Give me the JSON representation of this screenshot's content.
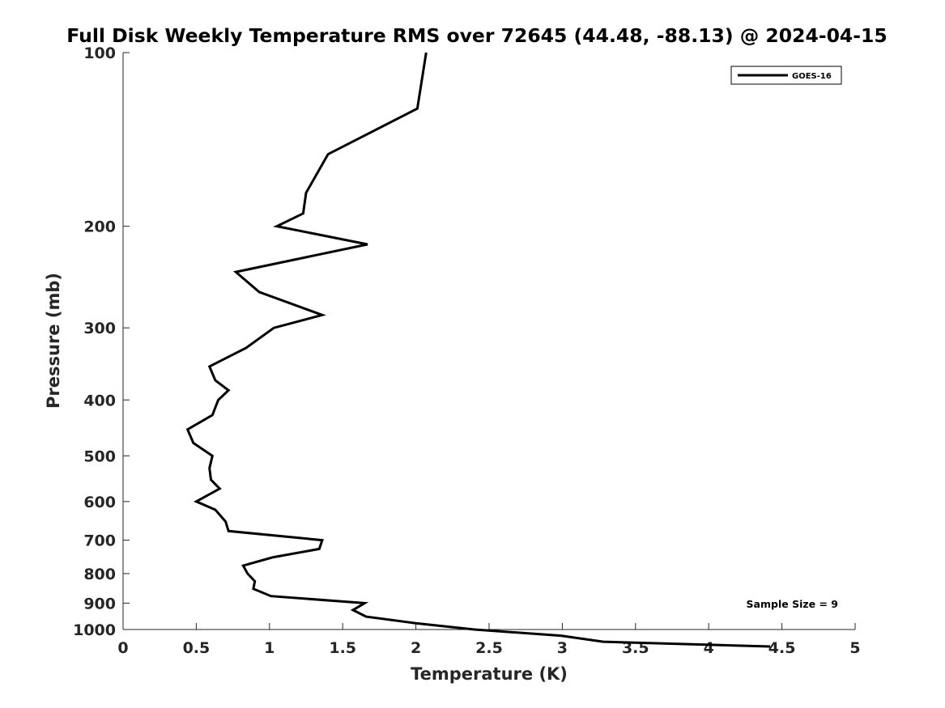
{
  "chart_data": {
    "type": "line",
    "title": "Full Disk Weekly Temperature RMS over 72645 (44.48, -88.13) @ 2024-04-15",
    "xlabel": "Temperature (K)",
    "ylabel": "Pressure (mb)",
    "xlim": [
      0,
      5
    ],
    "ylim": [
      100,
      1000
    ],
    "y_scale": "log",
    "y_reversed": true,
    "x_ticks": [
      "0",
      "0.5",
      "1",
      "1.5",
      "2",
      "2.5",
      "3",
      "3.5",
      "4",
      "4.5",
      "5"
    ],
    "y_ticks": [
      "100",
      "200",
      "300",
      "400",
      "500",
      "600",
      "700",
      "800",
      "900",
      "1000"
    ],
    "grid": false,
    "legend": {
      "placement": "top-right",
      "entries": [
        "GOES-16"
      ]
    },
    "annotation": "Sample Size = 9",
    "line_color": "#000000",
    "series": [
      {
        "name": "GOES-16",
        "x": [
          2.07,
          2.01,
          1.4,
          1.25,
          1.23,
          1.05,
          1.67,
          0.77,
          0.93,
          1.36,
          1.03,
          0.84,
          0.59,
          0.63,
          0.72,
          0.65,
          0.61,
          0.44,
          0.48,
          0.61,
          0.59,
          0.6,
          0.66,
          0.5,
          0.63,
          0.7,
          0.72,
          1.36,
          1.34,
          1.02,
          0.82,
          0.85,
          0.9,
          0.89,
          1.01,
          1.65,
          1.57,
          1.66,
          2.0,
          2.4,
          2.99,
          3.28,
          4.42
        ],
        "y": [
          100,
          125,
          150,
          175,
          190,
          200,
          215,
          240,
          260,
          285,
          300,
          325,
          350,
          370,
          385,
          400,
          425,
          450,
          475,
          500,
          525,
          550,
          570,
          600,
          620,
          650,
          675,
          700,
          725,
          750,
          775,
          800,
          825,
          850,
          875,
          900,
          925,
          950,
          975,
          1000,
          1025,
          1050,
          1070
        ]
      }
    ]
  }
}
